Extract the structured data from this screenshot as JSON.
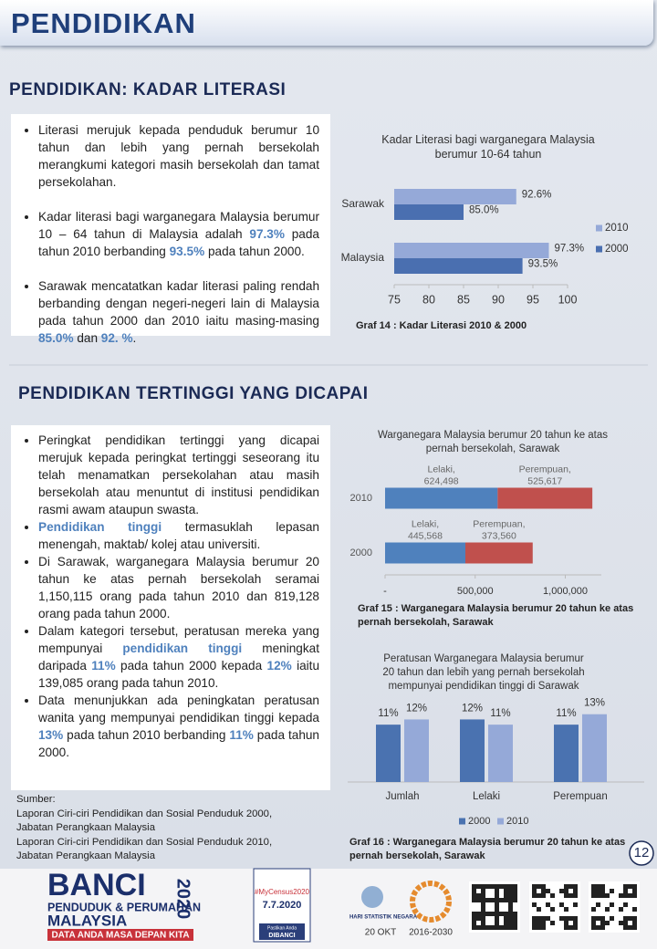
{
  "header": {
    "title": "PENDIDIKAN"
  },
  "sections": [
    {
      "title": "PENDIDIKAN:  KADAR LITERASI",
      "bullets": [
        [
          {
            "text": "Literasi merujuk kepada penduduk berumur 10 tahun dan lebih yang pernah bersekolah merangkumi kategori masih bersekolah dan tamat persekolahan."
          }
        ],
        [
          {
            "text": "Kadar literasi bagi warganegara Malaysia berumur 10 – 64 tahun di Malaysia adalah "
          },
          {
            "text": "97.3%",
            "color": "#4f81bd"
          },
          {
            "text": " pada tahun 2010 berbanding "
          },
          {
            "text": "93.5%",
            "color": "#4f81bd"
          },
          {
            "text": " pada tahun 2000."
          }
        ],
        [
          {
            "text": "Sarawak mencatatkan kadar literasi paling rendah berbanding dengan negeri-negeri lain di Malaysia pada  tahun 2000 dan 2010 iaitu masing-masing "
          },
          {
            "text": "85.0%",
            "color": "#4f81bd"
          },
          {
            "text": " dan "
          },
          {
            "text": "92. %",
            "color": "#4f81bd"
          },
          {
            "text": "."
          }
        ]
      ]
    },
    {
      "title": "PENDIDIKAN  TERTINGGI  YANG  DICAPAI",
      "bullets": [
        [
          {
            "text": "Peringkat pendidikan tertinggi yang dicapai merujuk kepada peringkat tertinggi seseorang itu telah menamatkan persekolahan atau masih bersekolah atau menuntut di institusi pendidikan rasmi awam ataupun swasta."
          }
        ],
        [
          {
            "text": "Pendidikan tinggi",
            "color": "#4f81bd"
          },
          {
            "text": " termasuklah lepasan menengah, maktab/ kolej atau universiti."
          }
        ],
        [
          {
            "text": "Di Sarawak, warganegara Malaysia berumur 20 tahun ke atas pernah bersekolah seramai 1,150,115 orang pada tahun 2010 dan 819,128 orang pada tahun 2000."
          }
        ],
        [
          {
            "text": "Dalam kategori tersebut, peratusan mereka yang mempunyai "
          },
          {
            "text": "pendidikan tinggi",
            "color": "#4f81bd"
          },
          {
            "text": " meningkat daripada "
          },
          {
            "text": "11%",
            "color": "#4f81bd"
          },
          {
            "text": " pada tahun 2000 kepada "
          },
          {
            "text": "12%",
            "color": "#4f81bd"
          },
          {
            "text": " iaitu 139,085 orang pada tahun 2010."
          }
        ],
        [
          {
            "text": "Data menunjukkan ada peningkatan peratusan wanita yang mempunyai pendidikan tinggi kepada "
          },
          {
            "text": "13%",
            "color": "#4f81bd"
          },
          {
            "text": " pada tahun 2010 berbanding "
          },
          {
            "text": "11%",
            "color": "#4f81bd"
          },
          {
            "text": " pada tahun 2000."
          }
        ]
      ]
    }
  ],
  "sources": {
    "title": "Sumber:",
    "lines": [
      "Laporan Ciri-ciri Pendidikan dan Sosial Penduduk 2000,",
      "Jabatan Perangkaan Malaysia",
      "Laporan Ciri-ciri Pendidikan dan Sosial Penduduk 2010,",
      "Jabatan Perangkaan Malaysia"
    ]
  },
  "chart_data": [
    {
      "type": "bar",
      "orientation": "horizontal",
      "title": "Kadar Literasi bagi warganegara Malaysia berumur 10-64 tahun",
      "caption": "Graf  14 : Kadar Literasi 2010 & 2000",
      "categories": [
        "Sarawak",
        "Malaysia"
      ],
      "series": [
        {
          "name": "2010",
          "color": "#95a9d8",
          "values": [
            92.6,
            97.3
          ],
          "value_labels": [
            "92.6%",
            "97.3%"
          ]
        },
        {
          "name": "2000",
          "color": "#4a6fb0",
          "values": [
            85.0,
            93.5
          ],
          "value_labels": [
            "85.0%",
            "93.5%"
          ]
        }
      ],
      "xlim": [
        75,
        100
      ],
      "xticks": [
        75,
        80,
        85,
        90,
        95,
        100
      ],
      "legend": "right"
    },
    {
      "type": "bar",
      "orientation": "horizontal",
      "stacked": true,
      "title": "Warganegara Malaysia berumur 20 tahun  ke atas pernah bersekolah,  Sarawak",
      "caption": "Graf  15 : Warganegara Malaysia berumur  20 tahun ke atas pernah bersekolah,  Sarawak",
      "categories": [
        "2010",
        "2000"
      ],
      "series": [
        {
          "name": "Lelaki",
          "color": "#4f81bd",
          "values": [
            624498,
            445568
          ],
          "value_labels": [
            "Lelaki, 624,498",
            "Lelaki, 445,568"
          ]
        },
        {
          "name": "Perempuan",
          "color": "#c0504d",
          "values": [
            525617,
            373560
          ],
          "value_labels": [
            "Perempuan, 525,617",
            "Perempuan, 373,560"
          ]
        }
      ],
      "xlim": [
        0,
        1200000
      ],
      "xticks": [
        {
          "value": 0,
          "label": "-"
        },
        {
          "value": 500000,
          "label": "500,000"
        },
        {
          "value": 1000000,
          "label": "1,000,000"
        }
      ]
    },
    {
      "type": "bar",
      "orientation": "vertical",
      "title": "Peratusan  Warganegara Malaysia berumur 20 tahun dan lebih yang pernah bersekolah mempunyai pendidikan tinggi  di Sarawak",
      "caption": "Graf  16 : Warganegara Malaysia berumur  20 tahun ke atas pernah bersekolah,  Sarawak",
      "categories": [
        "Jumlah",
        "Lelaki",
        "Perempuan"
      ],
      "series": [
        {
          "name": "2000",
          "color": "#4a72b0",
          "values": [
            11,
            12,
            11
          ],
          "value_labels": [
            "11%",
            "12%",
            "11%"
          ]
        },
        {
          "name": "2010",
          "color": "#95a9d8",
          "values": [
            12,
            11,
            13
          ],
          "value_labels": [
            "12%",
            "11%",
            "13%"
          ]
        }
      ],
      "ylim": [
        0,
        14
      ],
      "legend": "bottom"
    }
  ],
  "page_number": "12",
  "footer": {
    "banci": "BANCI",
    "line1": "PENDUDUK & PERUMAHAN",
    "line2": "MALAYSIA",
    "year": "2020",
    "slogan": "DATA ANDA MASA DEPAN KITA",
    "hashtag": "#MyCensus2020",
    "date": "7.7.2020",
    "pastikan": "Pastikan Anda",
    "dibanci": "DIBANCI",
    "hari": "HARI STATISTIK NEGARA",
    "okt": "20 OKT",
    "sdg": "2016-2030"
  }
}
